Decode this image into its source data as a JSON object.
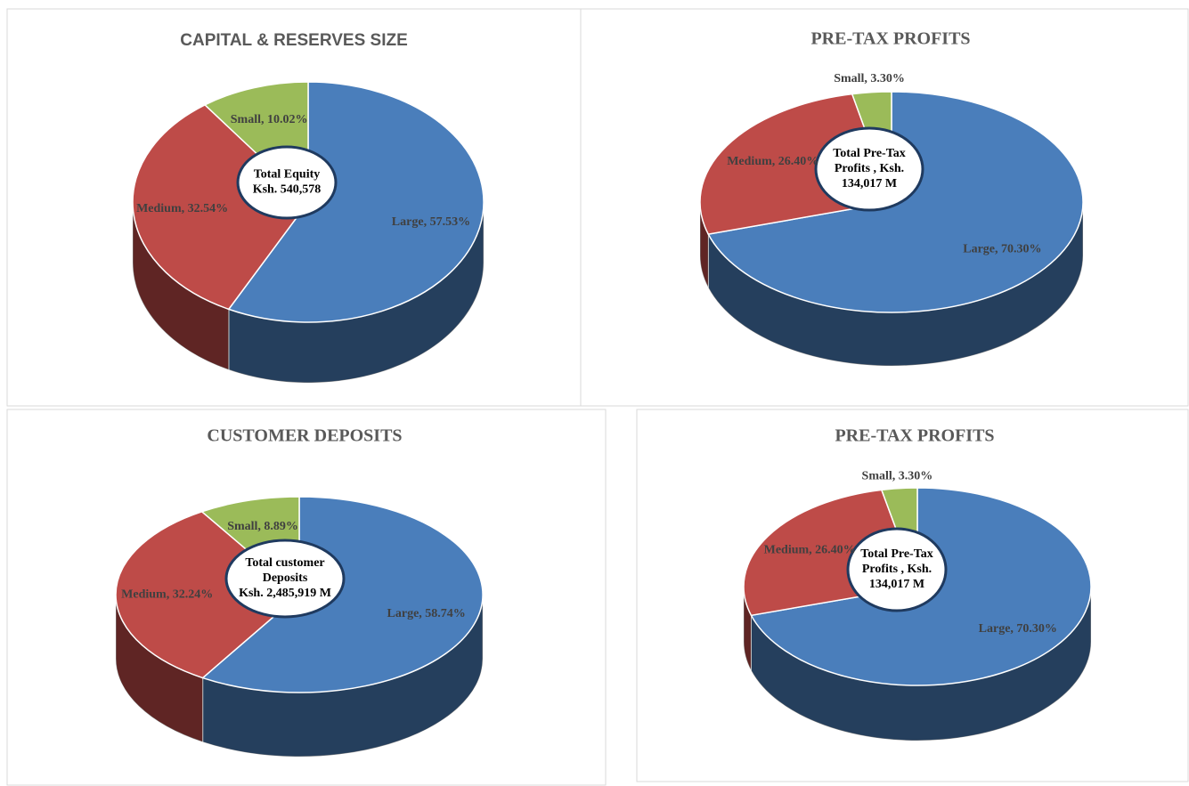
{
  "chart_data": [
    {
      "type": "pie",
      "title": "CAPITAL & RESERVES SIZE",
      "values": [
        57.53,
        32.54,
        10.02
      ],
      "value_labels": [
        "Large, 57.53%",
        "Medium, 32.54%",
        "Small, 10.02%"
      ],
      "colors": [
        "#4a7ebb",
        "#be4b48",
        "#9bbb59"
      ],
      "center_label": [
        "Total Equity",
        "Ksh. 540,578"
      ]
    },
    {
      "type": "pie",
      "title": "PRE-TAX PROFITS",
      "values": [
        70.3,
        26.4,
        3.3
      ],
      "value_labels": [
        "Large, 70.30%",
        "Medium, 26.40%",
        "Small, 3.30%"
      ],
      "colors": [
        "#4a7ebb",
        "#be4b48",
        "#9bbb59"
      ],
      "center_label": [
        "Total Pre-Tax",
        "Profits ,  Ksh.",
        "134,017 M"
      ]
    },
    {
      "type": "pie",
      "title": "CUSTOMER DEPOSITS",
      "values": [
        58.74,
        32.24,
        8.89
      ],
      "value_labels": [
        "Large, 58.74%",
        "Medium, 32.24%",
        "Small, 8.89%"
      ],
      "colors": [
        "#4a7ebb",
        "#be4b48",
        "#9bbb59"
      ],
      "center_label": [
        "Total customer",
        "Deposits",
        "Ksh. 2,485,919 M"
      ]
    },
    {
      "type": "pie",
      "title": "PRE-TAX PROFITS",
      "values": [
        70.3,
        26.4,
        3.3
      ],
      "value_labels": [
        "Large, 70.30%",
        "Medium, 26.40%",
        "Small, 3.30%"
      ],
      "colors": [
        "#4a7ebb",
        "#be4b48",
        "#9bbb59"
      ],
      "center_label": [
        "Total Pre-Tax",
        "Profits ,  Ksh.",
        "134,017 M"
      ]
    }
  ]
}
